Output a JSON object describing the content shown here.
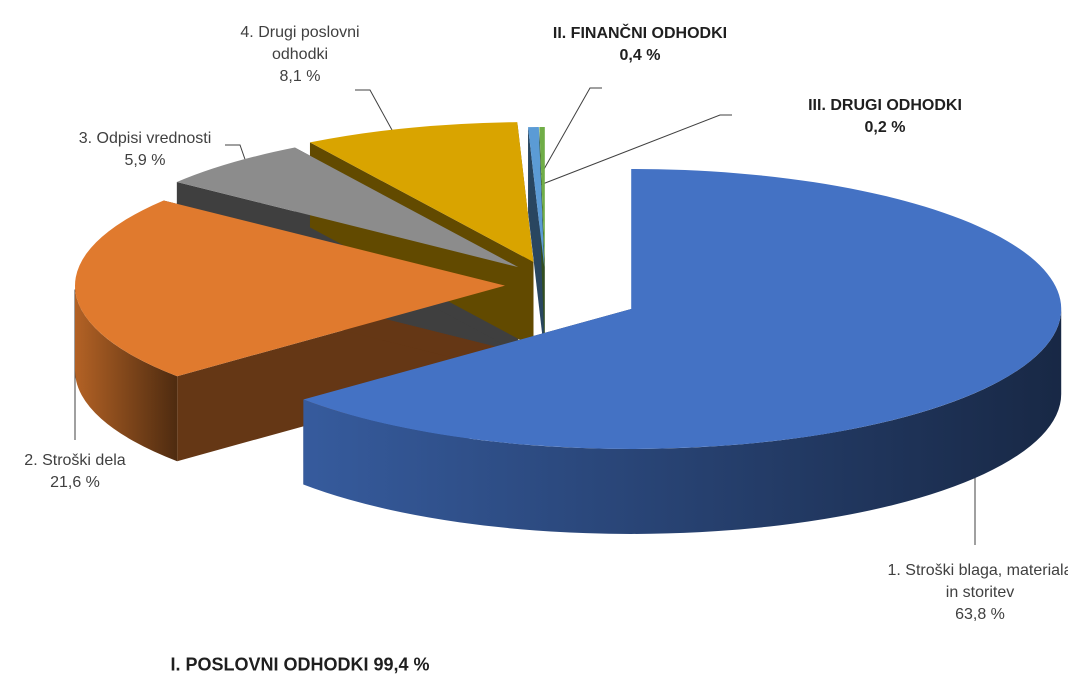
{
  "chart_data": {
    "type": "pie3d",
    "categories": [
      "1. Stroški blaga, materiala in storitev",
      "2. Stroški dela",
      "3. Odpisi vrednosti",
      "4. Drugi poslovni odhodki",
      "II. FINANČNI ODHODKI",
      "III. DRUGI ODHODKI"
    ],
    "values": [
      63.8,
      21.6,
      5.9,
      8.1,
      0.4,
      0.2
    ],
    "value_labels": [
      "63,8 %",
      "21,6 %",
      "5,9 %",
      "8,1 %",
      "0,4 %",
      "0,2 %"
    ],
    "colors": [
      "#4472c4",
      "#e07a2e",
      "#8c8c8c",
      "#d9a400",
      "#5b9bd5",
      "#70ad47"
    ],
    "annotation": "I. POSLOVNI ODHODKI 99,4 %"
  }
}
